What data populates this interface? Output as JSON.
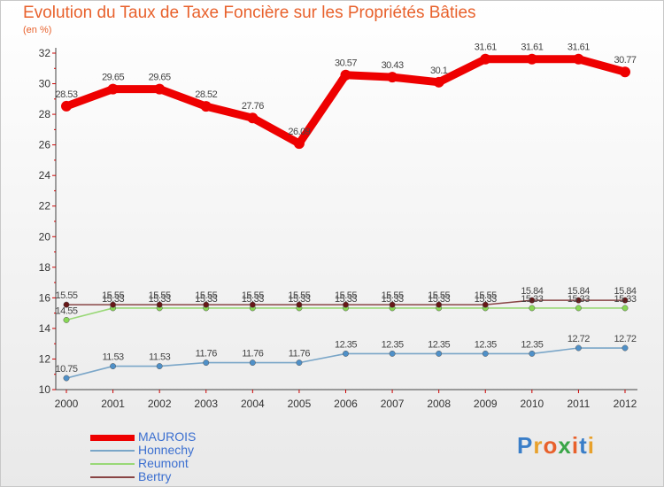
{
  "chart_data": {
    "type": "line",
    "title": "Evolution du Taux de Taxe Foncière sur les Propriétés Bâties",
    "subtitle": "(en %)",
    "xlabel": "",
    "ylabel": "(en %)",
    "x": [
      "2000",
      "2001",
      "2002",
      "2003",
      "2004",
      "2005",
      "2006",
      "2007",
      "2008",
      "2009",
      "2010",
      "2011",
      "2012"
    ],
    "ylim": [
      10,
      32
    ],
    "yticks": [
      10,
      12,
      14,
      16,
      18,
      20,
      22,
      24,
      26,
      28,
      30,
      32
    ],
    "grid": false,
    "legend_position": "bottom-left",
    "series": [
      {
        "name": "MAUROIS",
        "color": "#ee0000",
        "point_color": "#ee0000",
        "emphasis": true,
        "values": [
          28.53,
          29.65,
          29.65,
          28.52,
          27.76,
          26.09,
          30.57,
          30.43,
          30.1,
          31.61,
          31.61,
          31.61,
          30.77
        ],
        "labels": [
          "28.53",
          "29.65",
          "29.65",
          "28.52",
          "27.76",
          "26.09",
          "30.57",
          "30.43",
          "30.1",
          "31.61",
          "31.61",
          "31.61",
          "30.77"
        ]
      },
      {
        "name": "Honnechy",
        "color": "#7aa6c8",
        "point_color": "#4f90c8",
        "emphasis": false,
        "values": [
          10.75,
          11.53,
          11.53,
          11.76,
          11.76,
          11.76,
          12.35,
          12.35,
          12.35,
          12.35,
          12.35,
          12.72,
          12.72
        ],
        "labels": [
          "10.75",
          "11.53",
          "11.53",
          "11.76",
          "11.76",
          "11.76",
          "12.35",
          "12.35",
          "12.35",
          "12.35",
          "12.35",
          "12.72",
          "12.72"
        ]
      },
      {
        "name": "Reumont",
        "color": "#99d877",
        "point_color": "#88d855",
        "emphasis": false,
        "values": [
          14.55,
          15.33,
          15.33,
          15.33,
          15.33,
          15.33,
          15.33,
          15.33,
          15.33,
          15.33,
          15.33,
          15.33,
          15.33
        ],
        "labels": [
          "14.55",
          "15.33",
          "15.33",
          "15.33",
          "15.33",
          "15.33",
          "15.33",
          "15.33",
          "15.33",
          "15.33",
          "15.33",
          "15.33",
          "15.33"
        ]
      },
      {
        "name": "Bertry",
        "color": "#884444",
        "point_color": "#661818",
        "emphasis": false,
        "values": [
          15.55,
          15.55,
          15.55,
          15.55,
          15.55,
          15.55,
          15.55,
          15.55,
          15.55,
          15.55,
          15.84,
          15.84,
          15.84
        ],
        "labels": [
          "15.55",
          "15.55",
          "15.55",
          "15.55",
          "15.55",
          "15.55",
          "15.55",
          "15.55",
          "15.55",
          "15.55",
          "15.84",
          "15.84",
          "15.84"
        ]
      }
    ]
  },
  "brand": {
    "letters": [
      "P",
      "r",
      "o",
      "x",
      "i",
      "t",
      "i"
    ],
    "colors": [
      "#3a7ec8",
      "#e8a12c",
      "#e8612c",
      "#3aa648",
      "#e8612c",
      "#3a7ec8",
      "#e8a12c"
    ]
  }
}
